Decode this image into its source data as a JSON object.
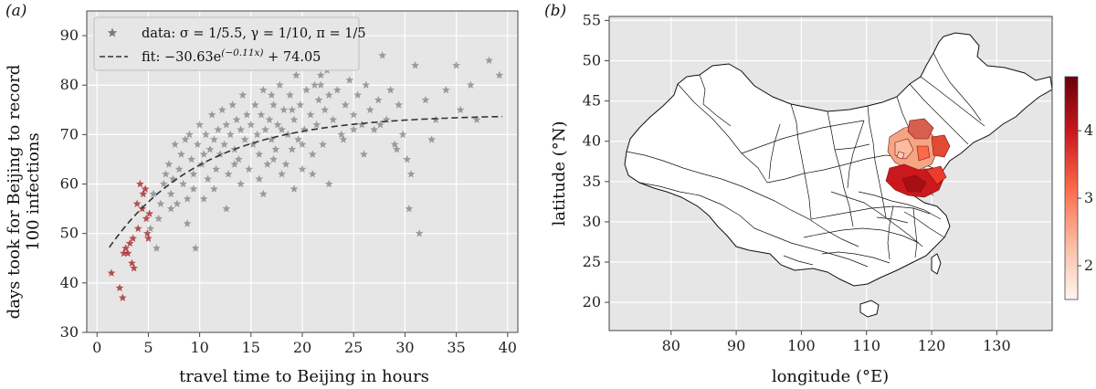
{
  "panels": {
    "a": "(a)",
    "b": "(b)"
  },
  "chart_data": [
    {
      "type": "scatter",
      "xlabel": "travel time to Beijing in hours",
      "ylabel_line1": "days took for Beijing to record",
      "ylabel_line2": "100 infections",
      "xlim": [
        -1,
        41
      ],
      "ylim": [
        30,
        95
      ],
      "xticks": [
        0,
        5,
        10,
        15,
        20,
        25,
        30,
        35,
        40
      ],
      "yticks": [
        30,
        40,
        50,
        60,
        70,
        80,
        90
      ],
      "grid": true,
      "legend_position": "top-left",
      "legend": {
        "data_label": "data: σ = 1/5.5, γ = 1/10, π = 1/5",
        "fit_label": "fit: −30.63e",
        "fit_exponent": "(−0.11x)",
        "fit_tail": " + 74.05"
      },
      "fit": {
        "a": -30.63,
        "b": -0.11,
        "c": 74.05,
        "x_range": [
          1.2,
          39.5
        ]
      },
      "red_points": [
        [
          1.4,
          42
        ],
        [
          2.2,
          39
        ],
        [
          2.5,
          37
        ],
        [
          2.6,
          46
        ],
        [
          2.8,
          47
        ],
        [
          3.0,
          46
        ],
        [
          3.2,
          48
        ],
        [
          3.4,
          44
        ],
        [
          3.5,
          49
        ],
        [
          3.6,
          43
        ],
        [
          4.0,
          51
        ],
        [
          4.2,
          60
        ],
        [
          4.4,
          55
        ],
        [
          4.5,
          58
        ],
        [
          4.7,
          59
        ],
        [
          4.9,
          50
        ],
        [
          5.0,
          49
        ],
        [
          5.1,
          54
        ],
        [
          4.8,
          53
        ],
        [
          3.9,
          56
        ]
      ],
      "gray_points": [
        [
          5.2,
          51
        ],
        [
          5.5,
          58
        ],
        [
          5.8,
          47
        ],
        [
          6.2,
          56
        ],
        [
          6.5,
          60
        ],
        [
          6.7,
          62
        ],
        [
          7.0,
          64
        ],
        [
          7.2,
          58
        ],
        [
          7.4,
          61
        ],
        [
          7.6,
          68
        ],
        [
          7.8,
          56
        ],
        [
          8.0,
          63
        ],
        [
          8.2,
          66
        ],
        [
          8.4,
          60
        ],
        [
          8.6,
          69
        ],
        [
          8.8,
          57
        ],
        [
          9.0,
          70
        ],
        [
          9.2,
          65
        ],
        [
          9.4,
          62
        ],
        [
          9.6,
          47
        ],
        [
          9.8,
          68
        ],
        [
          10.0,
          72
        ],
        [
          10.2,
          64
        ],
        [
          10.4,
          66
        ],
        [
          10.6,
          70
        ],
        [
          10.8,
          61
        ],
        [
          11.0,
          67
        ],
        [
          11.2,
          74
        ],
        [
          11.4,
          69
        ],
        [
          11.6,
          63
        ],
        [
          11.8,
          71
        ],
        [
          12.0,
          66
        ],
        [
          12.2,
          75
        ],
        [
          12.4,
          68
        ],
        [
          12.6,
          72
        ],
        [
          12.8,
          62
        ],
        [
          13.0,
          70
        ],
        [
          13.2,
          76
        ],
        [
          13.4,
          67
        ],
        [
          13.6,
          73
        ],
        [
          13.8,
          65
        ],
        [
          14.0,
          71
        ],
        [
          14.2,
          78
        ],
        [
          14.4,
          69
        ],
        [
          14.6,
          74
        ],
        [
          14.8,
          63
        ],
        [
          15.0,
          72
        ],
        [
          15.2,
          68
        ],
        [
          15.4,
          76
        ],
        [
          15.6,
          70
        ],
        [
          15.8,
          66
        ],
        [
          16.0,
          74
        ],
        [
          16.2,
          79
        ],
        [
          16.4,
          71
        ],
        [
          16.6,
          64
        ],
        [
          16.8,
          73
        ],
        [
          17.0,
          69
        ],
        [
          17.2,
          76
        ],
        [
          17.4,
          67
        ],
        [
          17.6,
          72
        ],
        [
          17.8,
          80
        ],
        [
          18.0,
          71
        ],
        [
          18.2,
          75
        ],
        [
          18.4,
          64
        ],
        [
          18.6,
          70
        ],
        [
          18.8,
          78
        ],
        [
          19.0,
          67
        ],
        [
          19.2,
          73
        ],
        [
          19.4,
          82
        ],
        [
          19.6,
          69
        ],
        [
          19.8,
          76
        ],
        [
          20.0,
          63
        ],
        [
          20.2,
          71
        ],
        [
          20.4,
          79
        ],
        [
          20.6,
          84
        ],
        [
          20.8,
          74
        ],
        [
          21.0,
          66
        ],
        [
          21.2,
          80
        ],
        [
          21.4,
          72
        ],
        [
          21.6,
          77
        ],
        [
          21.8,
          82
        ],
        [
          22.0,
          68
        ],
        [
          22.2,
          75
        ],
        [
          22.4,
          83
        ],
        [
          22.6,
          78
        ],
        [
          23.0,
          73
        ],
        [
          23.4,
          79
        ],
        [
          23.8,
          70
        ],
        [
          24.2,
          76
        ],
        [
          24.6,
          81
        ],
        [
          25.0,
          74
        ],
        [
          25.4,
          78
        ],
        [
          25.8,
          72
        ],
        [
          26.2,
          80
        ],
        [
          26.6,
          75
        ],
        [
          27.0,
          71
        ],
        [
          27.4,
          77
        ],
        [
          27.8,
          86
        ],
        [
          28.2,
          73
        ],
        [
          28.6,
          79
        ],
        [
          29.0,
          68
        ],
        [
          29.4,
          76
        ],
        [
          29.8,
          70
        ],
        [
          30.2,
          65
        ],
        [
          30.6,
          62
        ],
        [
          31.0,
          84
        ],
        [
          31.4,
          50
        ],
        [
          32.0,
          77
        ],
        [
          33.0,
          73
        ],
        [
          34.0,
          79
        ],
        [
          35.0,
          84
        ],
        [
          35.4,
          75
        ],
        [
          36.4,
          80
        ],
        [
          37.0,
          73
        ],
        [
          38.2,
          85
        ],
        [
          39.2,
          82
        ],
        [
          30.4,
          55
        ],
        [
          6.0,
          53
        ],
        [
          8.8,
          52
        ],
        [
          12.6,
          55
        ],
        [
          16.2,
          58
        ],
        [
          19.2,
          59
        ],
        [
          21.0,
          62
        ],
        [
          26.0,
          66
        ],
        [
          14.0,
          60
        ],
        [
          10.4,
          57
        ],
        [
          18.0,
          62
        ],
        [
          22.6,
          60
        ],
        [
          24.0,
          69
        ],
        [
          27.6,
          72
        ],
        [
          29.2,
          67
        ],
        [
          11.4,
          59
        ],
        [
          13.4,
          64
        ],
        [
          15.8,
          61
        ],
        [
          17.2,
          65
        ],
        [
          20.0,
          68
        ],
        [
          25.0,
          71
        ],
        [
          32.6,
          69
        ],
        [
          7.2,
          55
        ],
        [
          9.4,
          59
        ],
        [
          23.0,
          84
        ],
        [
          21.8,
          80
        ],
        [
          19.0,
          75
        ],
        [
          17.0,
          78
        ]
      ]
    },
    {
      "type": "map",
      "xlabel": "longitude (°E)",
      "ylabel": "latitude (°N)",
      "xlim": [
        70.5,
        138.5
      ],
      "ylim": [
        16.5,
        55.5
      ],
      "xticks": [
        80,
        90,
        100,
        110,
        120,
        130
      ],
      "yticks": [
        20,
        25,
        30,
        35,
        40,
        45,
        50,
        55
      ],
      "grid": true,
      "colorbar": {
        "ticks": [
          2,
          3,
          4
        ],
        "range": [
          1.5,
          4.8
        ],
        "colors": [
          "#fff5f0",
          "#fcbba1",
          "#fb6a4a",
          "#cb181d",
          "#67000d"
        ]
      }
    }
  ]
}
